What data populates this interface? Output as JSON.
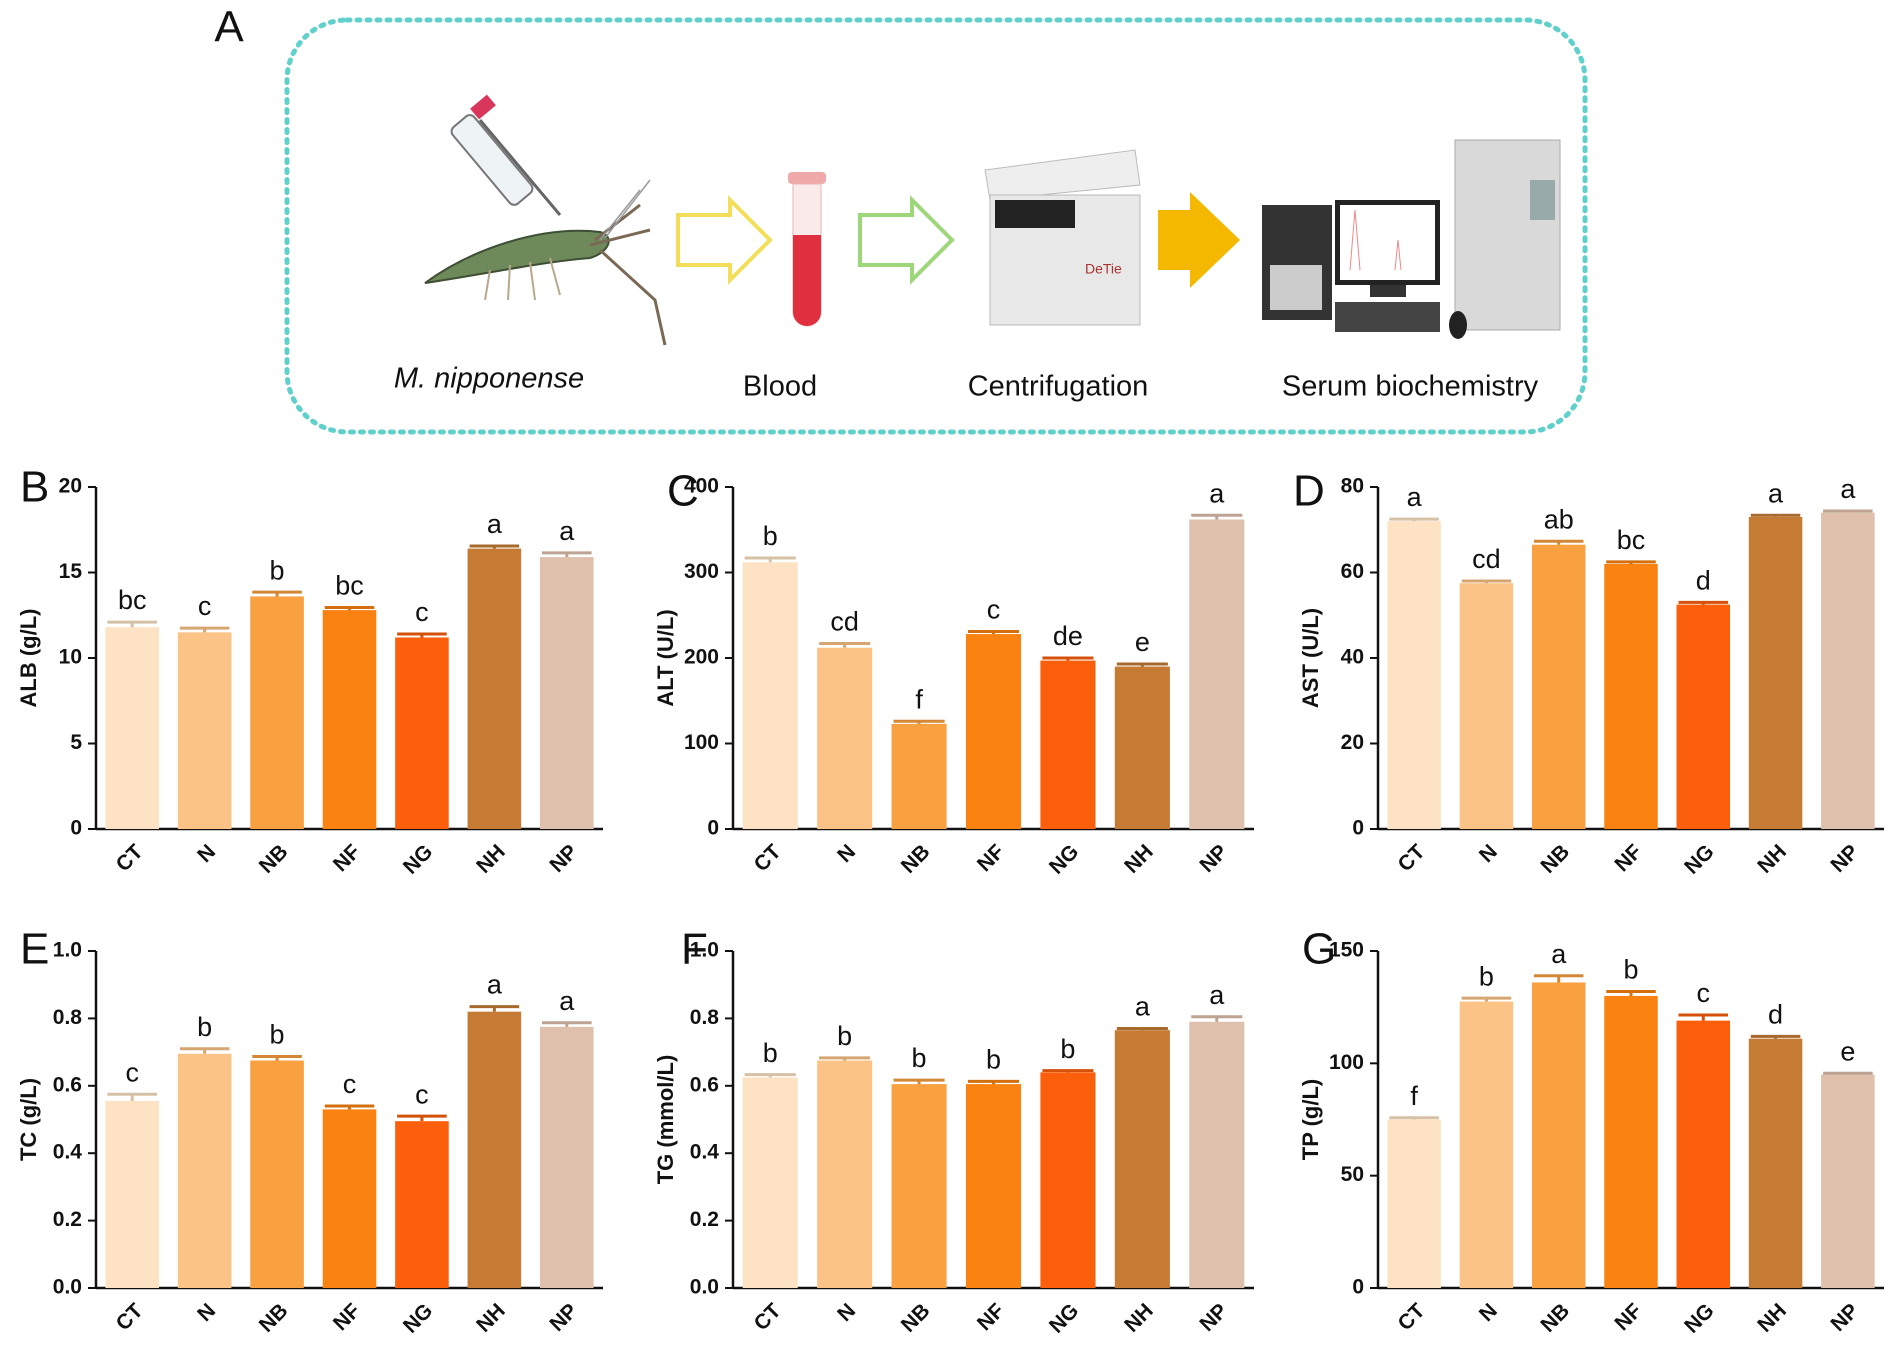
{
  "diagram": {
    "label": "A",
    "steps": [
      "M. nipponense",
      "Blood",
      "Centrifugation",
      "Serum biochemistry"
    ]
  },
  "chart_data": [
    {
      "type": "bar",
      "panel": "B",
      "ylabel": "ALB (g/L)",
      "categories": [
        "CT",
        "N",
        "NB",
        "NF",
        "NG",
        "NH",
        "NP"
      ],
      "values": [
        11.8,
        11.5,
        13.6,
        12.8,
        11.2,
        16.4,
        15.9
      ],
      "errors": [
        0.3,
        0.25,
        0.25,
        0.15,
        0.2,
        0.15,
        0.25
      ],
      "annotations": [
        "bc",
        "c",
        "b",
        "bc",
        "c",
        "a",
        "a"
      ],
      "colors": [
        "#fde3c3",
        "#fbc386",
        "#f9a040",
        "#f98210",
        "#fb5f0c",
        "#c67b35",
        "#dfc0ac"
      ],
      "ylim": [
        0,
        20
      ],
      "yticks": [
        0,
        5,
        10,
        15,
        20
      ]
    },
    {
      "type": "bar",
      "panel": "C",
      "ylabel": "ALT (U/L)",
      "categories": [
        "CT",
        "N",
        "NB",
        "NF",
        "NG",
        "NH",
        "NP"
      ],
      "values": [
        312,
        212,
        123,
        228,
        197,
        190,
        362
      ],
      "errors": [
        5,
        5,
        3,
        3,
        3,
        3,
        5
      ],
      "annotations": [
        "b",
        "cd",
        "f",
        "c",
        "de",
        "e",
        "a"
      ],
      "colors": [
        "#fde3c3",
        "#fbc386",
        "#f9a040",
        "#f98210",
        "#fb5f0c",
        "#c67b35",
        "#dfc0ac"
      ],
      "ylim": [
        0,
        400
      ],
      "yticks": [
        0,
        100,
        200,
        300,
        400
      ]
    },
    {
      "type": "bar",
      "panel": "D",
      "ylabel": "AST (U/L)",
      "categories": [
        "CT",
        "N",
        "NB",
        "NF",
        "NG",
        "NH",
        "NP"
      ],
      "values": [
        72,
        57.5,
        66.5,
        62,
        52.5,
        73,
        74
      ],
      "errors": [
        0.5,
        0.5,
        0.8,
        0.5,
        0.5,
        0.4,
        0.4
      ],
      "annotations": [
        "a",
        "cd",
        "ab",
        "bc",
        "d",
        "a",
        "a"
      ],
      "colors": [
        "#fde3c3",
        "#fbc386",
        "#f9a040",
        "#f98210",
        "#fb5f0c",
        "#c67b35",
        "#dfc0ac"
      ],
      "ylim": [
        0,
        80
      ],
      "yticks": [
        0,
        20,
        40,
        60,
        80
      ]
    },
    {
      "type": "bar",
      "panel": "E",
      "ylabel": "TC (g/L)",
      "categories": [
        "CT",
        "N",
        "NB",
        "NF",
        "NG",
        "NH",
        "NP"
      ],
      "values": [
        0.555,
        0.695,
        0.675,
        0.53,
        0.495,
        0.82,
        0.775
      ],
      "errors": [
        0.02,
        0.015,
        0.012,
        0.01,
        0.015,
        0.015,
        0.012
      ],
      "annotations": [
        "c",
        "b",
        "b",
        "c",
        "c",
        "a",
        "a"
      ],
      "colors": [
        "#fde3c3",
        "#fbc386",
        "#f9a040",
        "#f98210",
        "#fb5f0c",
        "#c67b35",
        "#dfc0ac"
      ],
      "ylim": [
        0,
        1
      ],
      "yticks": [
        {
          "value": 0,
          "label": "0.0"
        },
        0.2,
        0.4,
        0.6,
        0.8,
        {
          "value": 1,
          "label": "1.0"
        }
      ]
    },
    {
      "type": "bar",
      "panel": "F",
      "ylabel": "TG (mmol/L)",
      "categories": [
        "CT",
        "N",
        "NB",
        "NF",
        "NG",
        "NH",
        "NP"
      ],
      "values": [
        0.625,
        0.675,
        0.605,
        0.605,
        0.64,
        0.765,
        0.79
      ],
      "errors": [
        0.008,
        0.008,
        0.012,
        0.008,
        0.005,
        0.005,
        0.015
      ],
      "annotations": [
        "b",
        "b",
        "b",
        "b",
        "b",
        "a",
        "a"
      ],
      "colors": [
        "#fde3c3",
        "#fbc386",
        "#f9a040",
        "#f98210",
        "#fb5f0c",
        "#c67b35",
        "#dfc0ac"
      ],
      "ylim": [
        0,
        1
      ],
      "yticks": [
        {
          "value": 0,
          "label": "0.0"
        },
        0.2,
        0.4,
        0.6,
        0.8,
        {
          "value": 1,
          "label": "1.0"
        }
      ]
    },
    {
      "type": "bar",
      "panel": "G",
      "ylabel": "TP (g/L)",
      "categories": [
        "CT",
        "N",
        "NB",
        "NF",
        "NG",
        "NH",
        "NP"
      ],
      "values": [
        75,
        127.5,
        136,
        130,
        119,
        111,
        95
      ],
      "errors": [
        0.8,
        1.5,
        3,
        2,
        2.5,
        1,
        0.6
      ],
      "annotations": [
        "f",
        "b",
        "a",
        "b",
        "c",
        "d",
        "e"
      ],
      "colors": [
        "#fde3c3",
        "#fbc386",
        "#f9a040",
        "#f98210",
        "#fb5f0c",
        "#c67b35",
        "#dfc0ac"
      ],
      "ylim": [
        0,
        150
      ],
      "yticks": [
        0,
        50,
        100,
        150
      ]
    }
  ]
}
